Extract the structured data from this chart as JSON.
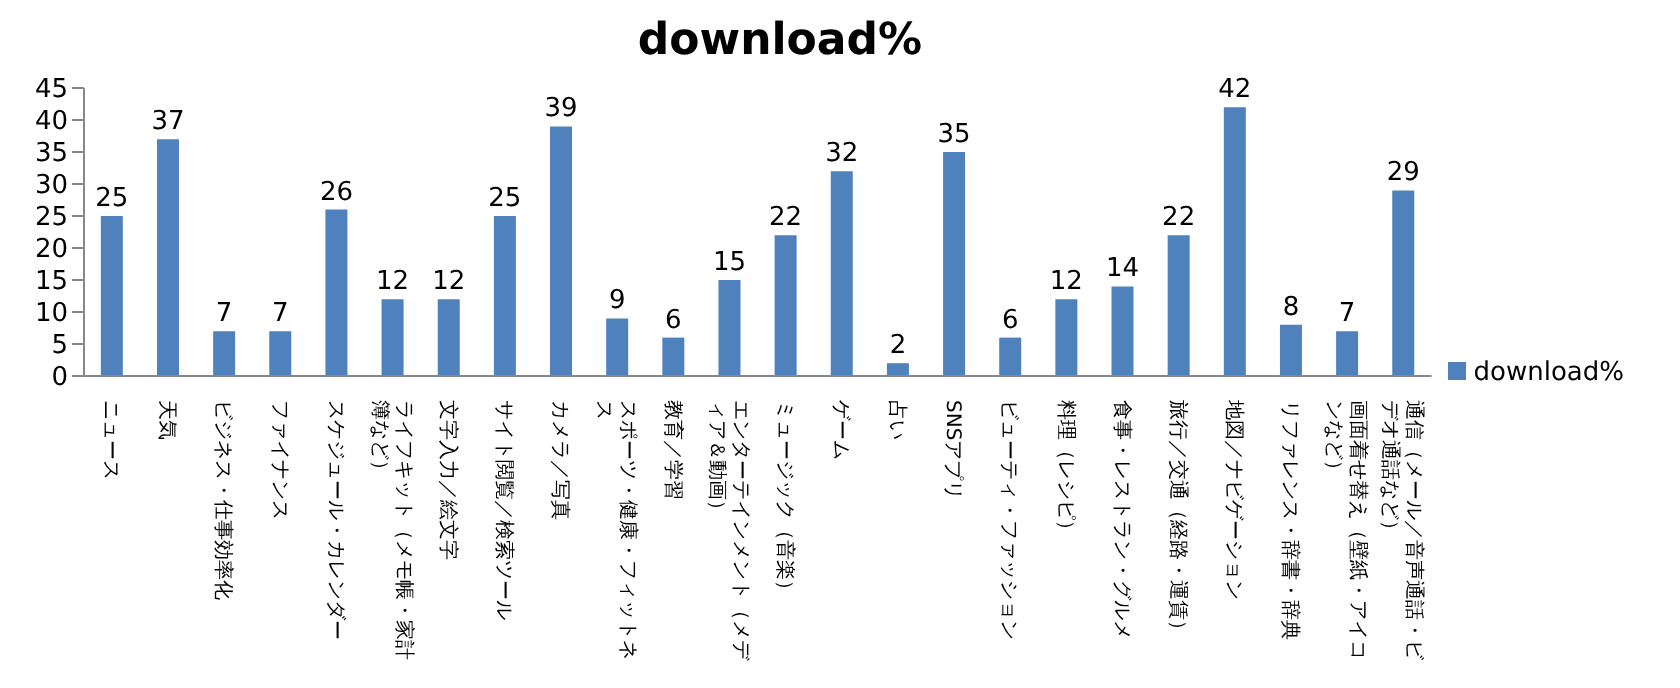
{
  "chart_data": {
    "type": "bar",
    "title": "download%",
    "categories": [
      "ニュース",
      "天気",
      "ビジネス・仕事効率化",
      "ファイナンス",
      "スケジュール・カレンダー",
      "ライフキット（メモ帳・家計簿など）",
      "文字入力／絵文字",
      "サイト閲覧／検索ツール",
      "カメラ／写真",
      "スポーツ・健康・フィットネス",
      "教育／学習",
      "エンターテインメント（メディア＆動画）",
      "ミュージック（音楽）",
      "ゲーム",
      "占い",
      "SNSアプリ",
      "ビューティ・ファッション",
      "料理（レシピ）",
      "食事・レストラン・グルメ",
      "旅行／交通（経路・運賃）",
      "地図／ナビゲーション",
      "リファレンス・辞書・辞典",
      "画面着せ替え（壁紙・アイコンなど）",
      "通信（メール／音声通話・ビデオ通話など）"
    ],
    "series": [
      {
        "name": "download%",
        "color": "#4f81bd",
        "values": [
          25,
          37,
          7,
          7,
          26,
          12,
          12,
          25,
          39,
          9,
          6,
          15,
          22,
          32,
          2,
          35,
          6,
          12,
          14,
          22,
          42,
          8,
          7,
          29
        ]
      }
    ],
    "ylim": [
      0,
      45
    ],
    "yticks": [
      0,
      5,
      10,
      15,
      20,
      25,
      30,
      35,
      40,
      45
    ],
    "data_labels": true,
    "legend": "right"
  }
}
